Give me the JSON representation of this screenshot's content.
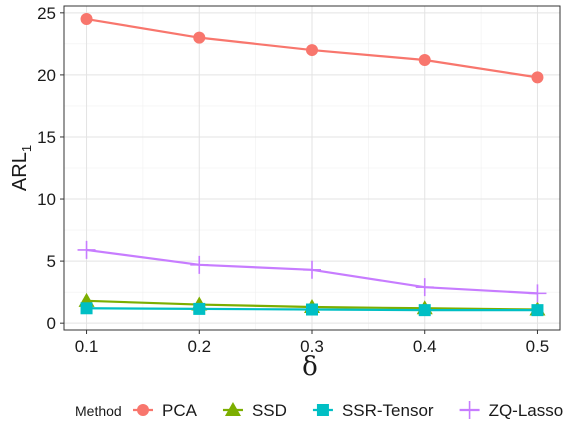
{
  "chart_data": {
    "type": "line",
    "xlabel": "δ",
    "ylabel_main": "ARL",
    "ylabel_sub": "1",
    "x": [
      0.1,
      0.2,
      0.3,
      0.4,
      0.5
    ],
    "x_tick_labels": [
      "0.1",
      "0.2",
      "0.3",
      "0.4",
      "0.5"
    ],
    "y_tick_labels": [
      "0",
      "5",
      "10",
      "15",
      "20",
      "25"
    ],
    "y_ticks": [
      0,
      5,
      10,
      15,
      20,
      25
    ],
    "xlim": [
      0.08,
      0.52
    ],
    "ylim": [
      -0.55,
      25.55
    ],
    "grid": true,
    "legend": {
      "title": "Method",
      "position": "bottom"
    },
    "series": [
      {
        "name": "PCA",
        "marker": "circle",
        "color": "#F8766D",
        "values": [
          24.5,
          23.0,
          22.0,
          21.2,
          19.8
        ]
      },
      {
        "name": "SSD",
        "marker": "triangle",
        "color": "#7CAE00",
        "values": [
          1.8,
          1.5,
          1.3,
          1.2,
          1.1
        ]
      },
      {
        "name": "SSR-Tensor",
        "marker": "square",
        "color": "#00BFC4",
        "values": [
          1.2,
          1.15,
          1.1,
          1.05,
          1.05
        ]
      },
      {
        "name": "ZQ-Lasso",
        "marker": "plus",
        "color": "#C77CFF",
        "values": [
          5.9,
          4.7,
          4.3,
          2.9,
          2.4
        ]
      }
    ]
  }
}
